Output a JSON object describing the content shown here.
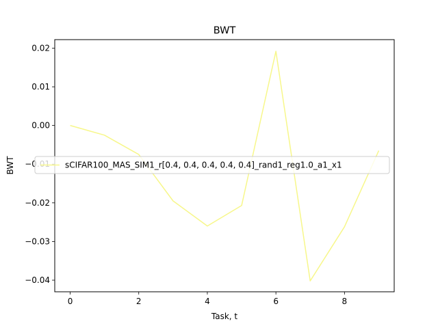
{
  "chart_data": {
    "type": "line",
    "title": "BWT",
    "xlabel": "Task, t",
    "ylabel": "BWT",
    "x": [
      0,
      1,
      2,
      3,
      4,
      5,
      6,
      7,
      8,
      9
    ],
    "series": [
      {
        "name": "sCIFAR100_MAS_SIM1_r[0.4, 0.4, 0.4, 0.4, 0.4]_rand1_reg1.0_a1_x1",
        "color": "#f7f78a",
        "values": [
          0.0,
          -0.0025,
          -0.0075,
          -0.0195,
          -0.026,
          -0.0207,
          0.0192,
          -0.0402,
          -0.0262,
          -0.0065
        ]
      }
    ],
    "xlim": [
      -0.45,
      9.45
    ],
    "ylim": [
      -0.043,
      0.0222
    ],
    "xticks": [
      0,
      2,
      4,
      6,
      8
    ],
    "yticks": [
      0.02,
      0.01,
      0.0,
      -0.01,
      -0.02,
      -0.03,
      -0.04
    ],
    "xtick_labels": [
      "0",
      "2",
      "4",
      "6",
      "8"
    ],
    "ytick_labels": [
      "0.02",
      "0.01",
      "0.00",
      "−0.01",
      "−0.02",
      "−0.03",
      "−0.04"
    ],
    "grid": false,
    "legend_position": "center-left"
  }
}
